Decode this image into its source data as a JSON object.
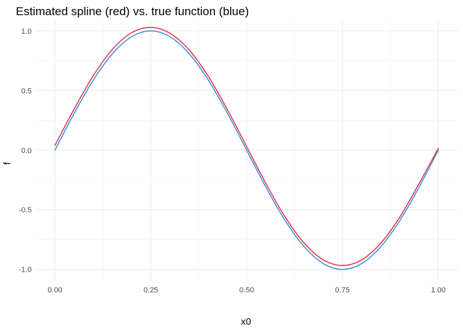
{
  "chart_data": {
    "type": "line",
    "title": "Estimated spline (red) vs. true function (blue)",
    "xlabel": "x0",
    "ylabel": "f",
    "xlim": [
      -0.05,
      1.05
    ],
    "ylim": [
      -1.1,
      1.08
    ],
    "x_ticks": [
      0.0,
      0.25,
      0.5,
      0.75,
      1.0
    ],
    "x_tick_labels": [
      "0.00",
      "0.25",
      "0.50",
      "0.75",
      "1.00"
    ],
    "y_ticks": [
      -1.0,
      -0.5,
      0.0,
      0.5,
      1.0
    ],
    "y_tick_labels": [
      "-1.0",
      "-0.5",
      "0.0",
      "0.5",
      "1.0"
    ],
    "grid": true,
    "legend": "none",
    "series": [
      {
        "color": "#e4253c",
        "x": [
          0.0,
          0.05,
          0.1,
          0.15,
          0.2,
          0.25,
          0.3,
          0.35,
          0.4,
          0.45,
          0.5,
          0.55,
          0.6,
          0.65,
          0.7,
          0.75,
          0.8,
          0.85,
          0.9,
          0.95,
          1.0
        ],
        "y": [
          0.04,
          0.345,
          0.625,
          0.846,
          0.985,
          1.03,
          0.98,
          0.84,
          0.619,
          0.339,
          0.03,
          -0.279,
          -0.559,
          -0.779,
          -0.92,
          -0.967,
          -0.92,
          -0.779,
          -0.559,
          -0.279,
          0.015
        ]
      },
      {
        "color": "#2b88d8",
        "x": [
          0.0,
          0.05,
          0.1,
          0.15,
          0.2,
          0.25,
          0.3,
          0.35,
          0.4,
          0.45,
          0.5,
          0.55,
          0.6,
          0.65,
          0.7,
          0.75,
          0.8,
          0.85,
          0.9,
          0.95,
          1.0
        ],
        "y": [
          0.0,
          0.309,
          0.588,
          0.809,
          0.951,
          1.0,
          0.951,
          0.809,
          0.588,
          0.309,
          0.0,
          -0.309,
          -0.588,
          -0.809,
          -0.951,
          -1.0,
          -0.951,
          -0.809,
          -0.588,
          -0.309,
          0.0
        ]
      }
    ]
  }
}
